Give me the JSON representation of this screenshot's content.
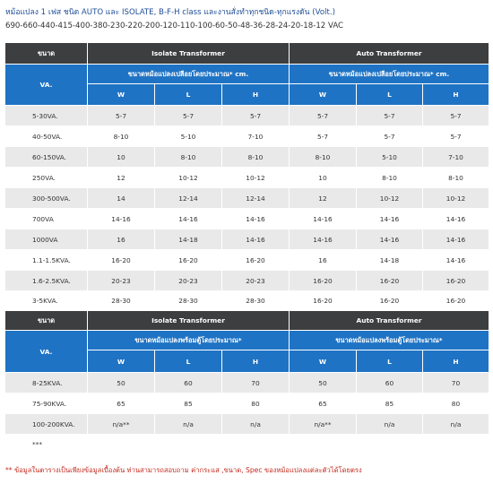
{
  "header": {
    "title": "หม้อแปลง 1 เฟส ชนิด AUTO และ ISOLATE, B-F-H class และงานสั่งทำทุกชนิด-ทุกแรงดัน (Volt.)",
    "voltages": "690-660-440-415-400-380-230-220-200-120-110-100-60-50-48-36-28-24-20-18-12 VAC"
  },
  "table1": {
    "col_size": "ขนาด",
    "col_va": "VA.",
    "isolate": "Isolate Transformer",
    "auto": "Auto Transformer",
    "sub": "ขนาดหม้อแปลงเปลือยโดยประมาณ* cm.",
    "w": "W",
    "l": "L",
    "h": "H",
    "rows": [
      {
        "va": "5-30VA.",
        "iw": "5-7",
        "il": "5-7",
        "ih": "5-7",
        "aw": "5-7",
        "al": "5-7",
        "ah": "5-7"
      },
      {
        "va": "40-50VA.",
        "iw": "8-10",
        "il": "5-10",
        "ih": "7-10",
        "aw": "5-7",
        "al": "5-7",
        "ah": "5-7"
      },
      {
        "va": "60-150VA.",
        "iw": "10",
        "il": "8-10",
        "ih": "8-10",
        "aw": "8-10",
        "al": "5-10",
        "ah": "7-10"
      },
      {
        "va": "250VA.",
        "iw": "12",
        "il": "10-12",
        "ih": "10-12",
        "aw": "10",
        "al": "8-10",
        "ah": "8-10"
      },
      {
        "va": "300-500VA.",
        "iw": "14",
        "il": "12-14",
        "ih": "12-14",
        "aw": "12",
        "al": "10-12",
        "ah": "10-12"
      },
      {
        "va": "700VA",
        "iw": "14-16",
        "il": "14-16",
        "ih": "14-16",
        "aw": "14-16",
        "al": "14-16",
        "ah": "14-16"
      },
      {
        "va": "1000VA",
        "iw": "16",
        "il": "14-18",
        "ih": "14-16",
        "aw": "14-16",
        "al": "14-16",
        "ah": "14-16"
      },
      {
        "va": "1.1-1.5KVA.",
        "iw": "16-20",
        "il": "16-20",
        "ih": "16-20",
        "aw": "16",
        "al": "14-18",
        "ah": "14-16"
      },
      {
        "va": "1.6-2.5KVA.",
        "iw": "20-23",
        "il": "20-23",
        "ih": "20-23",
        "aw": "16-20",
        "al": "16-20",
        "ah": "16-20"
      },
      {
        "va": "3-5KVA.",
        "iw": "28-30",
        "il": "28-30",
        "ih": "28-30",
        "aw": "16-20",
        "al": "16-20",
        "ah": "16-20"
      }
    ]
  },
  "table2": {
    "col_size": "ขนาด",
    "col_va": "VA.",
    "isolate": "Isolate Transformer",
    "auto": "Auto Transformer",
    "sub": "ขนาดหม้อแปลงพร้อมตู้โดยประมาณ*",
    "w": "W",
    "l": "L",
    "h": "H",
    "rows": [
      {
        "va": "8-25KVA.",
        "iw": "50",
        "il": "60",
        "ih": "70",
        "aw": "50",
        "al": "60",
        "ah": "70"
      },
      {
        "va": "75-90KVA.",
        "iw": "65",
        "il": "85",
        "ih": "80",
        "aw": "65",
        "al": "85",
        "ah": "80"
      },
      {
        "va": "100-200KVA.",
        "iw": "n/a**",
        "il": "n/a",
        "ih": "n/a",
        "aw": "n/a**",
        "al": "n/a",
        "ah": "n/a"
      },
      {
        "va": "***",
        "iw": "",
        "il": "",
        "ih": "",
        "aw": "",
        "al": "",
        "ah": ""
      }
    ]
  },
  "footnote": "** ข้อมูลในตารางเป็นเพียงข้อมูลเบื้องต้น ท่านสามารถสอบถาม ค่ากระแส ,ขนาด, Spec ของหม้อแปลงแต่ละตัวได้โดยตรง"
}
